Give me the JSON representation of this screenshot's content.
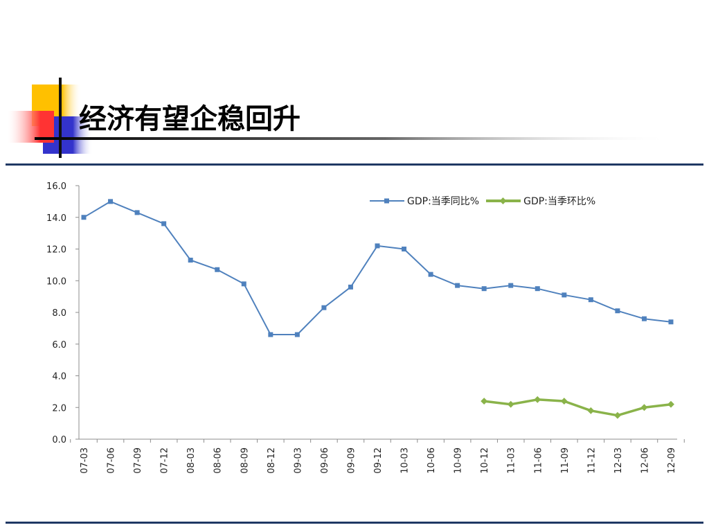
{
  "slide": {
    "title": "经济有望企稳回升"
  },
  "colors": {
    "series1": "#4f81bd",
    "series2": "#8ab34a",
    "rule": "#1f3864",
    "axis": "#8c8c8c",
    "deco_yellow": "#ffc000",
    "deco_red": "#ff3333",
    "deco_blue": "#3333cc"
  },
  "chart_data": {
    "type": "line",
    "title": "",
    "xlabel": "",
    "ylabel": "",
    "ylim": [
      0,
      16
    ],
    "yticks": [
      "0.0",
      "2.0",
      "4.0",
      "6.0",
      "8.0",
      "10.0",
      "12.0",
      "14.0",
      "16.0"
    ],
    "grid": false,
    "legend_position": "top-right",
    "categories": [
      "07-03",
      "07-06",
      "07-09",
      "07-12",
      "08-03",
      "08-06",
      "08-09",
      "08-12",
      "09-03",
      "09-06",
      "09-09",
      "09-12",
      "10-03",
      "10-06",
      "10-09",
      "10-12",
      "11-03",
      "11-06",
      "11-09",
      "11-12",
      "12-03",
      "12-06",
      "12-09"
    ],
    "series": [
      {
        "name": "GDP:当季同比%",
        "marker": "square",
        "values": [
          14.0,
          15.0,
          14.3,
          13.6,
          11.3,
          10.7,
          9.8,
          6.6,
          6.6,
          8.3,
          9.6,
          12.2,
          12.0,
          10.4,
          9.7,
          9.5,
          9.7,
          9.5,
          9.1,
          8.8,
          8.1,
          7.6,
          7.4
        ]
      },
      {
        "name": "GDP:当季环比%",
        "marker": "diamond",
        "values": [
          null,
          null,
          null,
          null,
          null,
          null,
          null,
          null,
          null,
          null,
          null,
          null,
          null,
          null,
          null,
          2.4,
          2.2,
          2.5,
          2.4,
          1.8,
          1.5,
          2.0,
          2.2
        ]
      }
    ]
  }
}
